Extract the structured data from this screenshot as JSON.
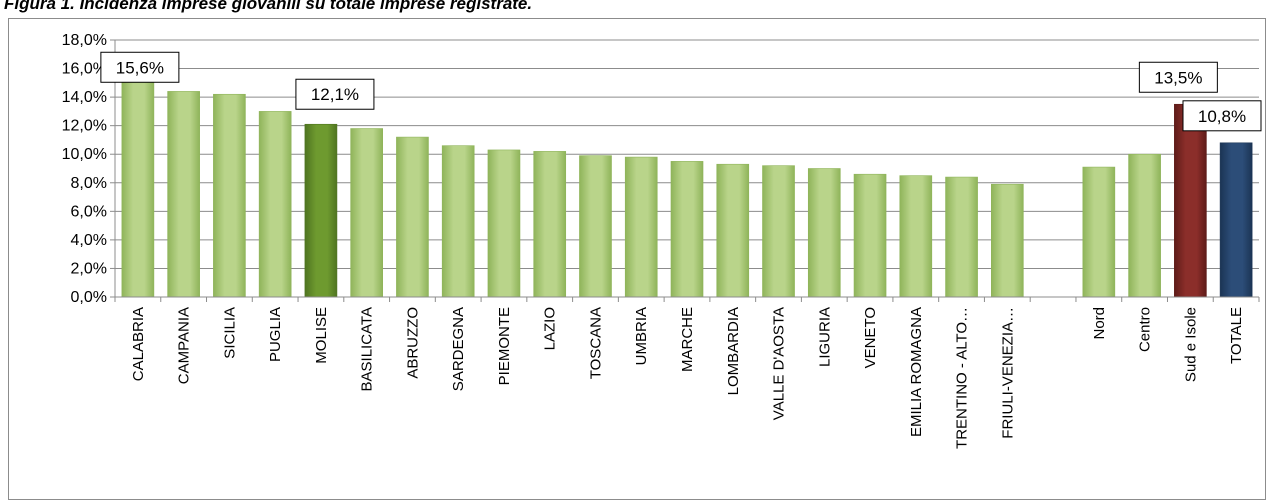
{
  "title": "Figura 1. Incidenza imprese giovanili su totale imprese registrate.",
  "colors": {
    "region_bar": "#b9d48a",
    "region_bar_dark": "#8fb45a",
    "highlight_bar": "#6e9a2f",
    "highlight_bar_dark": "#4f7420",
    "sud_bar": "#8b2e2a",
    "sud_bar_dark": "#5e1b18",
    "totale_bar": "#2c4d78",
    "totale_bar_dark": "#1b3454",
    "gridline": "#8c8c8c",
    "axis": "#8c8c8c"
  },
  "chart_data": {
    "type": "bar",
    "title": "Figura 1. Incidenza imprese giovanili su totale imprese registrate.",
    "xlabel": "",
    "ylabel": "",
    "ylim": [
      0,
      18
    ],
    "y_ticks": [
      "0,0%",
      "2,0%",
      "4,0%",
      "6,0%",
      "8,0%",
      "10,0%",
      "12,0%",
      "14,0%",
      "16,0%",
      "18,0%"
    ],
    "grid": true,
    "categories": [
      "CALABRIA",
      "CAMPANIA",
      "SICILIA",
      "PUGLIA",
      "MOLISE",
      "BASILICATA",
      "ABRUZZO",
      "SARDEGNA",
      "PIEMONTE",
      "LAZIO",
      "TOSCANA",
      "UMBRIA",
      "MARCHE",
      "LOMBARDIA",
      "VALLE D'AOSTA",
      "LIGURIA",
      "VENETO",
      "EMILIA ROMAGNA",
      "TRENTINO - ALTO…",
      "FRIULI-VENEZIA…",
      "",
      "Nord",
      "Centro",
      "Sud e Isole",
      "TOTALE"
    ],
    "values": [
      15.6,
      14.4,
      14.2,
      13.0,
      12.1,
      11.8,
      11.2,
      10.6,
      10.3,
      10.2,
      9.9,
      9.8,
      9.5,
      9.3,
      9.2,
      9.0,
      8.6,
      8.5,
      8.4,
      7.9,
      null,
      9.1,
      10.0,
      13.5,
      10.8
    ],
    "bar_kinds": [
      "region",
      "region",
      "region",
      "region",
      "highlight",
      "region",
      "region",
      "region",
      "region",
      "region",
      "region",
      "region",
      "region",
      "region",
      "region",
      "region",
      "region",
      "region",
      "region",
      "region",
      "gap",
      "region",
      "region",
      "sud",
      "totale"
    ],
    "data_labels": [
      {
        "index": 0,
        "text": "15,6%"
      },
      {
        "index": 4,
        "text": "12,1%"
      },
      {
        "index": 23,
        "text": "13,5%"
      },
      {
        "index": 24,
        "text": "10,8%"
      }
    ]
  }
}
